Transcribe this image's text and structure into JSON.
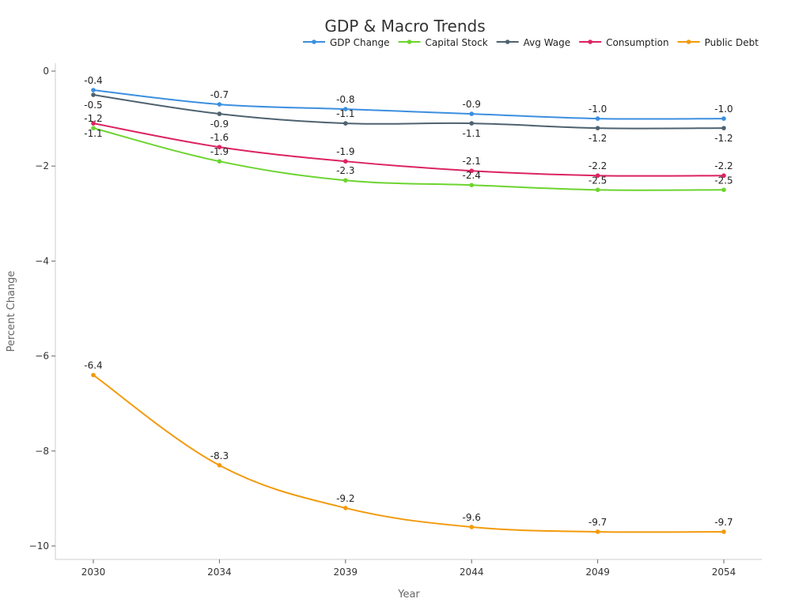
{
  "chart_data": {
    "type": "line",
    "title": "GDP & Macro Trends",
    "xlabel": "Year",
    "ylabel": "Percent Change",
    "categories": [
      "2030",
      "2034",
      "2039",
      "2044",
      "2049",
      "2054"
    ],
    "ylim": [
      -10.3,
      0.15
    ],
    "yticks": [
      0,
      -2,
      -4,
      -6,
      -8,
      -10
    ],
    "ytick_labels": [
      "0",
      "−2",
      "−4",
      "−6",
      "−8",
      "−10"
    ],
    "grid": false,
    "legend_position": "top-right",
    "series": [
      {
        "name": "GDP Change",
        "color": "#3b8fe0",
        "values": [
          -0.4,
          -0.7,
          -0.8,
          -0.9,
          -1.0,
          -1.0
        ]
      },
      {
        "name": "Capital Stock",
        "color": "#6cd42f",
        "values": [
          -1.2,
          -1.9,
          -2.3,
          -2.4,
          -2.5,
          -2.5
        ]
      },
      {
        "name": "Avg Wage",
        "color": "#4e6270",
        "values": [
          -0.5,
          -0.9,
          -1.1,
          -1.1,
          -1.2,
          -1.2
        ]
      },
      {
        "name": "Consumption",
        "color": "#dc2362",
        "values": [
          -1.1,
          -1.6,
          -1.9,
          -2.1,
          -2.2,
          -2.2
        ]
      },
      {
        "name": "Public Debt",
        "color": "#f39a0c",
        "values": [
          -6.4,
          -8.3,
          -9.2,
          -9.6,
          -9.7,
          -9.7
        ]
      }
    ]
  }
}
